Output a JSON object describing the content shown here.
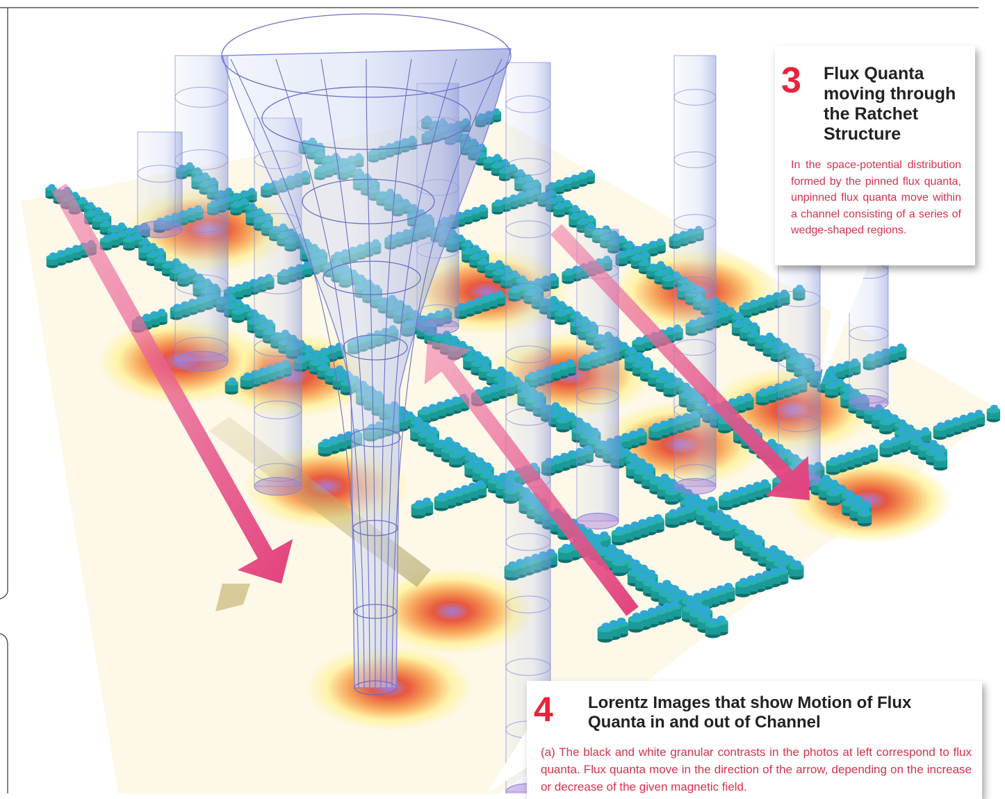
{
  "callouts": {
    "c3": {
      "number": "3",
      "title": "Flux Quanta moving through the Ratchet Structure",
      "body": "In the space-potential distribution formed by the pinned flux quanta, unpinned flux quanta move within a channel consisting of a series of wedge-shaped regions."
    },
    "c4": {
      "number": "4",
      "title": "Lorentz Images that show Motion of Flux Quanta in and out of Channel",
      "body": "(a) The black and white granular contrasts in the photos at left correspond to flux quanta. Flux quanta move in the direction of the arrow, depending on the increase or decrease of the given magnetic field."
    }
  },
  "colors": {
    "pillar": "#1b9a97",
    "pillar_top": "#2fa8d5",
    "arrow": "#e2417c",
    "heat_outer": "#fff3a8",
    "heat_mid": "#f7a35a",
    "heat_inner": "#e8583e",
    "heat_core": "#a779d6",
    "funnel": "#7f88d8",
    "accent_red": "#e8233a"
  }
}
